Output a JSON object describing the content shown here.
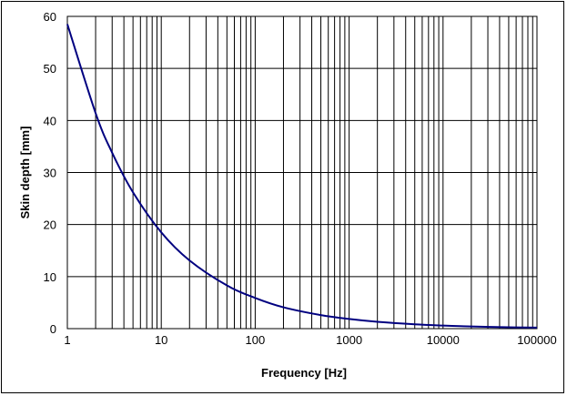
{
  "chart_data": {
    "type": "line",
    "title": "",
    "xlabel": "Frequency [Hz]",
    "ylabel": "Skin depth [mm]",
    "x_scale": "log",
    "xlim": [
      1,
      100000
    ],
    "ylim": [
      0,
      60
    ],
    "x_ticks": [
      "1",
      "10",
      "100",
      "1000",
      "10000",
      "100000"
    ],
    "y_ticks": [
      "0",
      "10",
      "20",
      "30",
      "40",
      "50",
      "60"
    ],
    "grid": true,
    "legend": "none",
    "series": [
      {
        "line_color": "#000080",
        "x": [
          1,
          2,
          3,
          5,
          10,
          20,
          50,
          100,
          200,
          500,
          1000,
          2000,
          5000,
          10000,
          20000,
          50000,
          100000
        ],
        "y": [
          58.5,
          41.4,
          33.8,
          26.2,
          18.5,
          13.1,
          8.3,
          5.9,
          4.1,
          2.6,
          1.85,
          1.31,
          0.83,
          0.59,
          0.41,
          0.26,
          0.19
        ]
      }
    ]
  }
}
